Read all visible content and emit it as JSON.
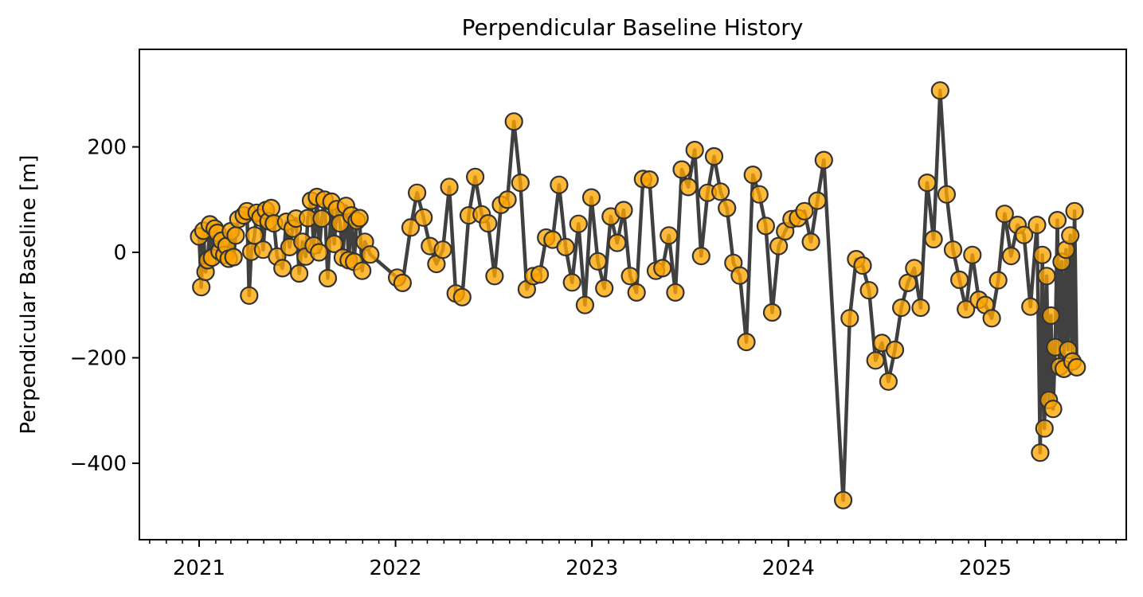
{
  "chart_data": {
    "type": "line",
    "title": "Perpendicular Baseline History",
    "xlabel": "",
    "ylabel": "Perpendicular Baseline [m]",
    "xlim": [
      "2020-09-12",
      "2025-09-20"
    ],
    "ylim": [
      -545,
      385
    ],
    "x_ticks": [
      "2021",
      "2022",
      "2023",
      "2024",
      "2025"
    ],
    "x_tick_dates": [
      "2021-01-01",
      "2022-01-01",
      "2023-01-01",
      "2024-01-01",
      "2025-01-01"
    ],
    "y_ticks": [
      200,
      0,
      -200,
      -400
    ],
    "y_tick_labels": [
      "200",
      "0",
      "−200",
      "−400"
    ],
    "grid": false,
    "legend": null,
    "line_color": "#404040",
    "marker_fill": "#ffa500",
    "marker_edge": "#333333",
    "series": [
      {
        "points": [
          [
            "2021-01-01",
            30
          ],
          [
            "2021-01-05",
            -66
          ],
          [
            "2021-01-09",
            41
          ],
          [
            "2021-01-13",
            -37
          ],
          [
            "2021-01-17",
            -15
          ],
          [
            "2021-01-21",
            53
          ],
          [
            "2021-01-25",
            -10
          ],
          [
            "2021-01-30",
            45
          ],
          [
            "2021-02-04",
            37
          ],
          [
            "2021-02-08",
            2
          ],
          [
            "2021-02-12",
            22
          ],
          [
            "2021-02-17",
            -5
          ],
          [
            "2021-02-21",
            12
          ],
          [
            "2021-02-25",
            -12
          ],
          [
            "2021-03-01",
            40
          ],
          [
            "2021-03-06",
            -9
          ],
          [
            "2021-03-10",
            32
          ],
          [
            "2021-03-15",
            63
          ],
          [
            "2021-03-25",
            70
          ],
          [
            "2021-03-31",
            78
          ],
          [
            "2021-04-04",
            -82
          ],
          [
            "2021-04-08",
            1
          ],
          [
            "2021-04-14",
            32
          ],
          [
            "2021-04-18",
            75
          ],
          [
            "2021-04-25",
            66
          ],
          [
            "2021-04-30",
            5
          ],
          [
            "2021-05-05",
            80
          ],
          [
            "2021-05-10",
            59
          ],
          [
            "2021-05-15",
            84
          ],
          [
            "2021-05-20",
            55
          ],
          [
            "2021-05-26",
            -8
          ],
          [
            "2021-06-05",
            -30
          ],
          [
            "2021-06-12",
            58
          ],
          [
            "2021-06-18",
            10
          ],
          [
            "2021-06-24",
            45
          ],
          [
            "2021-06-30",
            64
          ],
          [
            "2021-07-06",
            -40
          ],
          [
            "2021-07-12",
            20
          ],
          [
            "2021-07-18",
            -8
          ],
          [
            "2021-07-22",
            65
          ],
          [
            "2021-07-28",
            98
          ],
          [
            "2021-08-02",
            13
          ],
          [
            "2021-08-08",
            105
          ],
          [
            "2021-08-12",
            0
          ],
          [
            "2021-08-17",
            64
          ],
          [
            "2021-08-22",
            100
          ],
          [
            "2021-08-28",
            -49
          ],
          [
            "2021-09-04",
            96
          ],
          [
            "2021-09-09",
            16
          ],
          [
            "2021-09-14",
            82
          ],
          [
            "2021-09-20",
            55
          ],
          [
            "2021-09-25",
            -10
          ],
          [
            "2021-10-01",
            88
          ],
          [
            "2021-10-06",
            -15
          ],
          [
            "2021-10-11",
            70
          ],
          [
            "2021-10-16",
            -18
          ],
          [
            "2021-10-21",
            60
          ],
          [
            "2021-10-26",
            65
          ],
          [
            "2021-10-31",
            -35
          ],
          [
            "2021-11-05",
            20
          ],
          [
            "2021-11-15",
            -4
          ],
          [
            "2022-01-04",
            -48
          ],
          [
            "2022-01-14",
            -58
          ],
          [
            "2022-01-29",
            47
          ],
          [
            "2022-02-10",
            113
          ],
          [
            "2022-02-22",
            66
          ],
          [
            "2022-03-06",
            12
          ],
          [
            "2022-03-18",
            -22
          ],
          [
            "2022-03-30",
            5
          ],
          [
            "2022-04-11",
            124
          ],
          [
            "2022-04-23",
            -78
          ],
          [
            "2022-05-05",
            -85
          ],
          [
            "2022-05-17",
            70
          ],
          [
            "2022-05-29",
            143
          ],
          [
            "2022-06-10",
            72
          ],
          [
            "2022-06-22",
            55
          ],
          [
            "2022-07-04",
            -45
          ],
          [
            "2022-07-16",
            90
          ],
          [
            "2022-07-28",
            100
          ],
          [
            "2022-08-09",
            248
          ],
          [
            "2022-08-21",
            132
          ],
          [
            "2022-09-02",
            -70
          ],
          [
            "2022-09-14",
            -45
          ],
          [
            "2022-09-26",
            -42
          ],
          [
            "2022-10-08",
            28
          ],
          [
            "2022-10-20",
            24
          ],
          [
            "2022-11-01",
            128
          ],
          [
            "2022-11-13",
            10
          ],
          [
            "2022-11-25",
            -57
          ],
          [
            "2022-12-07",
            54
          ],
          [
            "2022-12-19",
            -100
          ],
          [
            "2022-12-31",
            104
          ],
          [
            "2023-01-12",
            -17
          ],
          [
            "2023-01-24",
            -68
          ],
          [
            "2023-02-05",
            68
          ],
          [
            "2023-02-17",
            18
          ],
          [
            "2023-03-01",
            80
          ],
          [
            "2023-03-13",
            -45
          ],
          [
            "2023-03-25",
            -76
          ],
          [
            "2023-04-06",
            139
          ],
          [
            "2023-04-18",
            138
          ],
          [
            "2023-04-30",
            -35
          ],
          [
            "2023-05-12",
            -30
          ],
          [
            "2023-05-24",
            32
          ],
          [
            "2023-06-05",
            -76
          ],
          [
            "2023-06-17",
            157
          ],
          [
            "2023-06-29",
            124
          ],
          [
            "2023-07-11",
            194
          ],
          [
            "2023-07-23",
            -7
          ],
          [
            "2023-08-04",
            113
          ],
          [
            "2023-08-16",
            182
          ],
          [
            "2023-08-28",
            115
          ],
          [
            "2023-09-09",
            84
          ],
          [
            "2023-09-21",
            -20
          ],
          [
            "2023-10-03",
            -44
          ],
          [
            "2023-10-15",
            -170
          ],
          [
            "2023-10-27",
            147
          ],
          [
            "2023-11-08",
            110
          ],
          [
            "2023-11-20",
            50
          ],
          [
            "2023-12-02",
            -114
          ],
          [
            "2023-12-14",
            12
          ],
          [
            "2023-12-26",
            40
          ],
          [
            "2024-01-07",
            63
          ],
          [
            "2024-01-19",
            65
          ],
          [
            "2024-01-31",
            78
          ],
          [
            "2024-02-12",
            20
          ],
          [
            "2024-02-24",
            98
          ],
          [
            "2024-03-07",
            175
          ],
          [
            "2024-04-12",
            -470
          ],
          [
            "2024-04-24",
            -125
          ],
          [
            "2024-05-06",
            -13
          ],
          [
            "2024-05-18",
            -25
          ],
          [
            "2024-05-30",
            -72
          ],
          [
            "2024-06-11",
            -205
          ],
          [
            "2024-06-23",
            -172
          ],
          [
            "2024-07-05",
            -245
          ],
          [
            "2024-07-17",
            -185
          ],
          [
            "2024-07-29",
            -105
          ],
          [
            "2024-08-10",
            -58
          ],
          [
            "2024-08-22",
            -30
          ],
          [
            "2024-09-03",
            -105
          ],
          [
            "2024-09-15",
            132
          ],
          [
            "2024-09-27",
            25
          ],
          [
            "2024-10-09",
            307
          ],
          [
            "2024-10-21",
            110
          ],
          [
            "2024-11-02",
            5
          ],
          [
            "2024-11-14",
            -52
          ],
          [
            "2024-11-26",
            -108
          ],
          [
            "2024-12-08",
            -5
          ],
          [
            "2024-12-20",
            -90
          ],
          [
            "2025-01-01",
            -100
          ],
          [
            "2025-01-13",
            -125
          ],
          [
            "2025-01-25",
            -53
          ],
          [
            "2025-02-06",
            73
          ],
          [
            "2025-02-18",
            -7
          ],
          [
            "2025-03-02",
            52
          ],
          [
            "2025-03-14",
            33
          ],
          [
            "2025-03-26",
            -103
          ],
          [
            "2025-04-07",
            52
          ],
          [
            "2025-04-13",
            -380
          ],
          [
            "2025-04-17",
            -5
          ],
          [
            "2025-04-21",
            -334
          ],
          [
            "2025-04-25",
            -45
          ],
          [
            "2025-04-29",
            -280
          ],
          [
            "2025-05-03",
            -120
          ],
          [
            "2025-05-07",
            -297
          ],
          [
            "2025-05-11",
            -180
          ],
          [
            "2025-05-15",
            61
          ],
          [
            "2025-05-19",
            -217
          ],
          [
            "2025-05-23",
            -18
          ],
          [
            "2025-05-27",
            -221
          ],
          [
            "2025-05-31",
            5
          ],
          [
            "2025-06-04",
            -185
          ],
          [
            "2025-06-08",
            32
          ],
          [
            "2025-06-12",
            -207
          ],
          [
            "2025-06-16",
            78
          ],
          [
            "2025-06-20",
            -218
          ]
        ]
      }
    ]
  }
}
